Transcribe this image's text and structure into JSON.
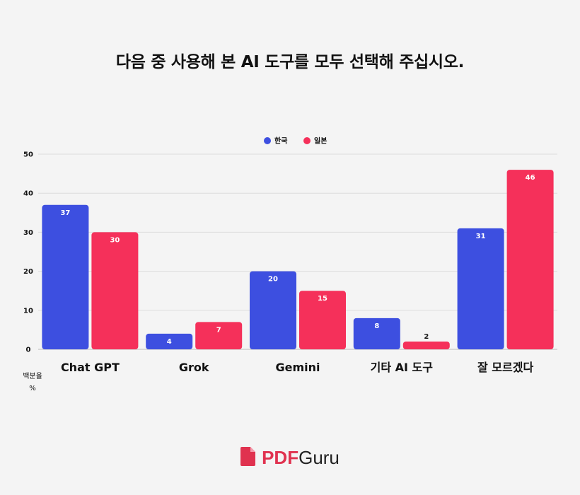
{
  "title": "다음 중 사용해 본 AI 도구를 모두 선택해 주십시오.",
  "chart_data": {
    "type": "bar",
    "categories": [
      "Chat GPT",
      "Grok",
      "Gemini",
      "기타 AI 도구",
      "잘 모르겠다"
    ],
    "series": [
      {
        "name": "한국",
        "color": "#3d4fe0",
        "values": [
          37,
          4,
          20,
          8,
          31
        ]
      },
      {
        "name": "일본",
        "color": "#f5305a",
        "values": [
          30,
          7,
          15,
          2,
          46
        ]
      }
    ],
    "ylim": [
      0,
      50
    ],
    "yticks": [
      0,
      10,
      20,
      30,
      40,
      50
    ],
    "ylabel": "백분율\n%",
    "xlabel": "",
    "grid": true,
    "legend_position": "top-center"
  },
  "brand": {
    "pdf": "PDF",
    "guru": "Guru",
    "icon": "pdf-file-icon",
    "color": "#e0324f"
  }
}
